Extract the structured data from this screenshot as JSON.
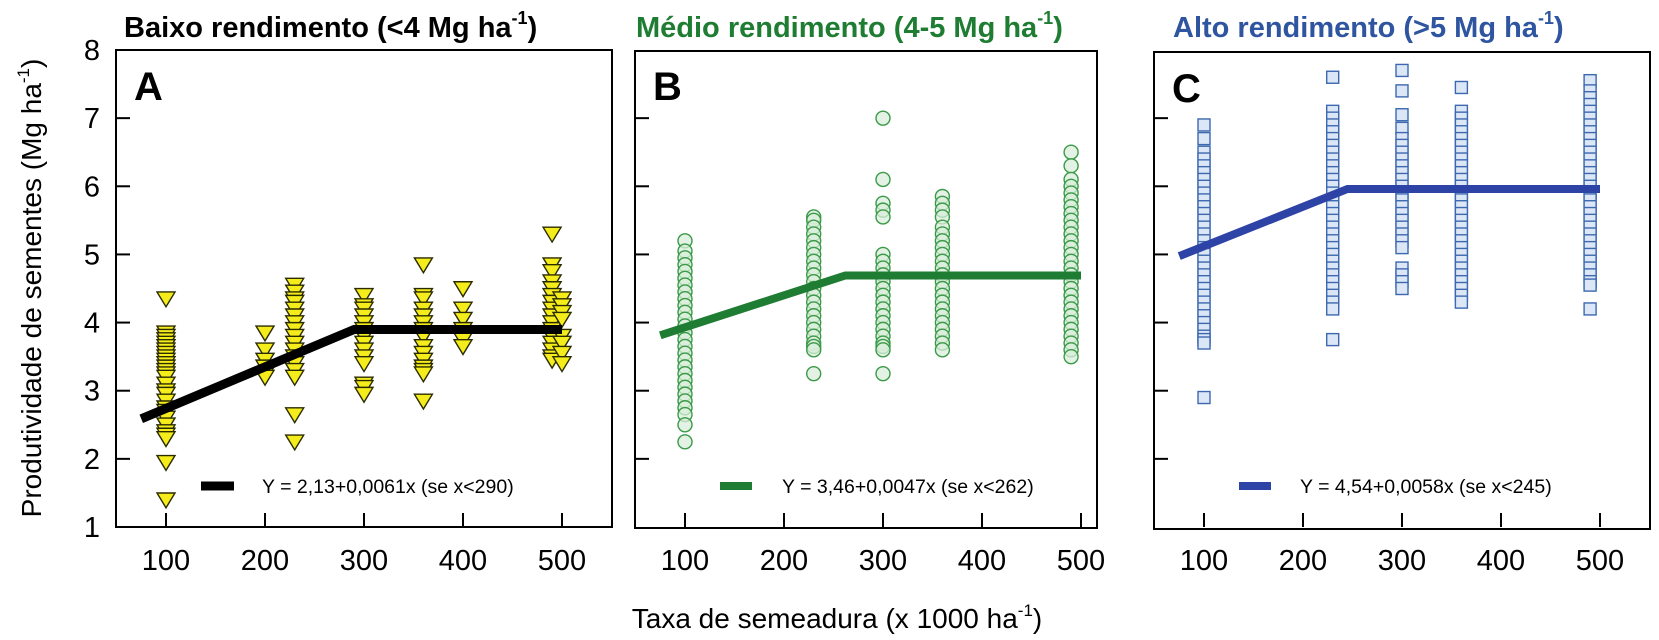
{
  "chart_data": {
    "type": "scatter",
    "ylabel": "Produtividade de sementes (Mg ha",
    "ylabel_sup": "-1",
    "ylabel_close": ")",
    "xlabel": "Taxa de semeadura (x 1000 ha",
    "xlabel_sup": "-1",
    "xlabel_close": ")",
    "ylim": [
      1,
      8
    ],
    "xlim": [
      50,
      550
    ],
    "yticks": [
      "1",
      "2",
      "3",
      "4",
      "5",
      "6",
      "7",
      "8"
    ],
    "xticks": [
      "100",
      "200",
      "300",
      "400",
      "500"
    ],
    "grid": false,
    "panels": [
      {
        "letter": "A",
        "title": "Baixo rendimento (<4 Mg ha",
        "title_sup": "-1",
        "title_close": ")",
        "title_color": "#000000",
        "marker": "triangle-down",
        "marker_fill": "#f5ec1c",
        "marker_stroke": "#2b2b00",
        "line_color": "#000000",
        "legend": "Y = 2,13+0,0061x (se x<290)",
        "model": {
          "intercept": 2.13,
          "slope": 0.0061,
          "breakpoint": 290,
          "x_start": 75,
          "x_end": 500
        },
        "points": [
          {
            "x": 100,
            "y": [
              4.35,
              3.85,
              3.8,
              3.75,
              3.7,
              3.65,
              3.6,
              3.55,
              3.5,
              3.45,
              3.4,
              3.35,
              3.3,
              3.25,
              3.2,
              3.1,
              3.0,
              2.95,
              2.85,
              2.75,
              2.7,
              2.6,
              2.5,
              2.4,
              2.35,
              2.3,
              1.95,
              1.4
            ]
          },
          {
            "x": 200,
            "y": [
              3.85,
              3.6,
              3.45,
              3.35,
              3.25,
              3.2
            ]
          },
          {
            "x": 230,
            "y": [
              4.55,
              4.45,
              4.35,
              4.3,
              4.2,
              4.1,
              4.0,
              3.9,
              3.8,
              3.7,
              3.6,
              3.5,
              3.4,
              3.3,
              3.2,
              2.65,
              2.25
            ]
          },
          {
            "x": 300,
            "y": [
              4.4,
              4.25,
              4.2,
              4.1,
              4.0,
              3.9,
              3.8,
              3.7,
              3.6,
              3.5,
              3.4,
              3.1,
              3.05,
              2.95
            ]
          },
          {
            "x": 360,
            "y": [
              4.85,
              4.4,
              4.35,
              4.2,
              4.1,
              4.0,
              3.9,
              3.8,
              3.65,
              3.55,
              3.45,
              3.35,
              3.3,
              3.25,
              2.85
            ]
          },
          {
            "x": 400,
            "y": [
              4.5,
              4.2,
              4.05,
              3.9,
              3.75,
              3.65
            ]
          },
          {
            "x": 490,
            "y": [
              5.3,
              4.85,
              4.75,
              4.6,
              4.5,
              4.4,
              4.3,
              4.2,
              4.1,
              4.0,
              3.9,
              3.8,
              3.7,
              3.6,
              3.5,
              3.45
            ]
          },
          {
            "x": 500,
            "y": [
              4.35,
              4.25,
              4.15,
              4.05,
              3.8,
              3.7,
              3.55,
              3.4
            ]
          }
        ]
      },
      {
        "letter": "B",
        "title": "Médio rendimento (4-5 Mg ha",
        "title_sup": "-1",
        "title_close": ")",
        "title_color": "#1e7d32",
        "marker": "circle",
        "marker_fill": "#d9eedb",
        "marker_stroke": "#3a9a48",
        "line_color": "#1e7d32",
        "legend": "Y = 3,46+0,0047x (se x<262)",
        "model": {
          "intercept": 3.46,
          "slope": 0.0047,
          "breakpoint": 262,
          "x_start": 75,
          "x_end": 500
        },
        "points": [
          {
            "x": 100,
            "y": [
              5.2,
              5.05,
              4.95,
              4.85,
              4.75,
              4.65,
              4.55,
              4.45,
              4.35,
              4.25,
              4.15,
              4.05,
              3.95,
              3.85,
              3.75,
              3.65,
              3.55,
              3.45,
              3.35,
              3.25,
              3.15,
              3.05,
              2.95,
              2.85,
              2.75,
              2.65,
              2.5,
              2.25
            ]
          },
          {
            "x": 230,
            "y": [
              5.55,
              5.5,
              5.4,
              5.3,
              5.2,
              5.1,
              5.0,
              4.9,
              4.8,
              4.7,
              4.6,
              4.5,
              4.4,
              4.3,
              4.2,
              4.1,
              4.0,
              3.9,
              3.8,
              3.7,
              3.65,
              3.6,
              3.25
            ]
          },
          {
            "x": 300,
            "y": [
              7.0,
              6.1,
              5.75,
              5.65,
              5.55,
              5.0,
              4.9,
              4.8,
              4.7,
              4.6,
              4.5,
              4.4,
              4.3,
              4.2,
              4.1,
              4.0,
              3.9,
              3.8,
              3.7,
              3.65,
              3.6,
              3.25
            ]
          },
          {
            "x": 360,
            "y": [
              5.85,
              5.75,
              5.65,
              5.55,
              5.4,
              5.3,
              5.2,
              5.1,
              5.0,
              4.9,
              4.8,
              4.7,
              4.6,
              4.5,
              4.4,
              4.3,
              4.2,
              4.1,
              4.0,
              3.9,
              3.8,
              3.7,
              3.6
            ]
          },
          {
            "x": 490,
            "y": [
              6.5,
              6.3,
              6.1,
              6.0,
              5.9,
              5.8,
              5.7,
              5.6,
              5.5,
              5.4,
              5.3,
              5.2,
              5.1,
              5.0,
              4.9,
              4.8,
              4.7,
              4.6,
              4.5,
              4.4,
              4.3,
              4.2,
              4.1,
              4.0,
              3.9,
              3.8,
              3.7,
              3.6,
              3.5
            ]
          }
        ]
      },
      {
        "letter": "C",
        "title": "Alto rendimento (>5 Mg ha",
        "title_sup": "-1",
        "title_close": ")",
        "title_color": "#2f55a0",
        "marker": "square",
        "marker_fill": "#dbe7f6",
        "marker_stroke": "#3d68b0",
        "line_color": "#2d44a6",
        "legend": "Y = 4,54+0,0058x (se x<245)",
        "model": {
          "intercept": 4.54,
          "slope": 0.0058,
          "breakpoint": 245,
          "x_start": 75,
          "x_end": 500
        },
        "points": [
          {
            "x": 100,
            "y": [
              6.9,
              6.7,
              6.5,
              6.4,
              6.3,
              6.2,
              6.1,
              6.0,
              5.9,
              5.8,
              5.7,
              5.6,
              5.5,
              5.4,
              5.3,
              5.2,
              5.1,
              5.0,
              4.9,
              4.8,
              4.7,
              4.6,
              4.5,
              4.4,
              4.3,
              4.2,
              4.1,
              4.0,
              3.9,
              3.8,
              3.75,
              3.7,
              2.9
            ]
          },
          {
            "x": 230,
            "y": [
              7.6,
              7.1,
              7.0,
              6.9,
              6.8,
              6.7,
              6.6,
              6.5,
              6.4,
              6.3,
              6.2,
              6.1,
              6.0,
              5.9,
              5.8,
              5.7,
              5.6,
              5.5,
              5.4,
              5.3,
              5.2,
              5.1,
              5.0,
              4.9,
              4.8,
              4.7,
              4.6,
              4.5,
              4.4,
              4.3,
              4.2,
              3.75
            ]
          },
          {
            "x": 300,
            "y": [
              7.7,
              7.4,
              7.05,
              6.85,
              6.7,
              6.6,
              6.5,
              6.4,
              6.3,
              6.2,
              6.1,
              6.0,
              5.9,
              5.8,
              5.7,
              5.6,
              5.5,
              5.4,
              5.3,
              5.2,
              5.1,
              4.8,
              4.7,
              4.6,
              4.5
            ]
          },
          {
            "x": 360,
            "y": [
              7.45,
              7.1,
              7.0,
              6.9,
              6.8,
              6.7,
              6.6,
              6.5,
              6.4,
              6.3,
              6.2,
              6.1,
              6.0,
              5.9,
              5.8,
              5.7,
              5.6,
              5.5,
              5.4,
              5.3,
              5.2,
              5.1,
              5.0,
              4.9,
              4.8,
              4.7,
              4.6,
              4.5,
              4.4,
              4.3
            ]
          },
          {
            "x": 490,
            "y": [
              7.55,
              7.4,
              7.3,
              7.2,
              7.1,
              7.0,
              6.9,
              6.8,
              6.7,
              6.6,
              6.5,
              6.4,
              6.3,
              6.2,
              6.1,
              6.0,
              5.9,
              5.8,
              5.7,
              5.6,
              5.5,
              5.4,
              5.3,
              5.2,
              5.1,
              5.0,
              4.9,
              4.8,
              4.7,
              4.6,
              4.55,
              4.2
            ]
          }
        ]
      }
    ]
  }
}
